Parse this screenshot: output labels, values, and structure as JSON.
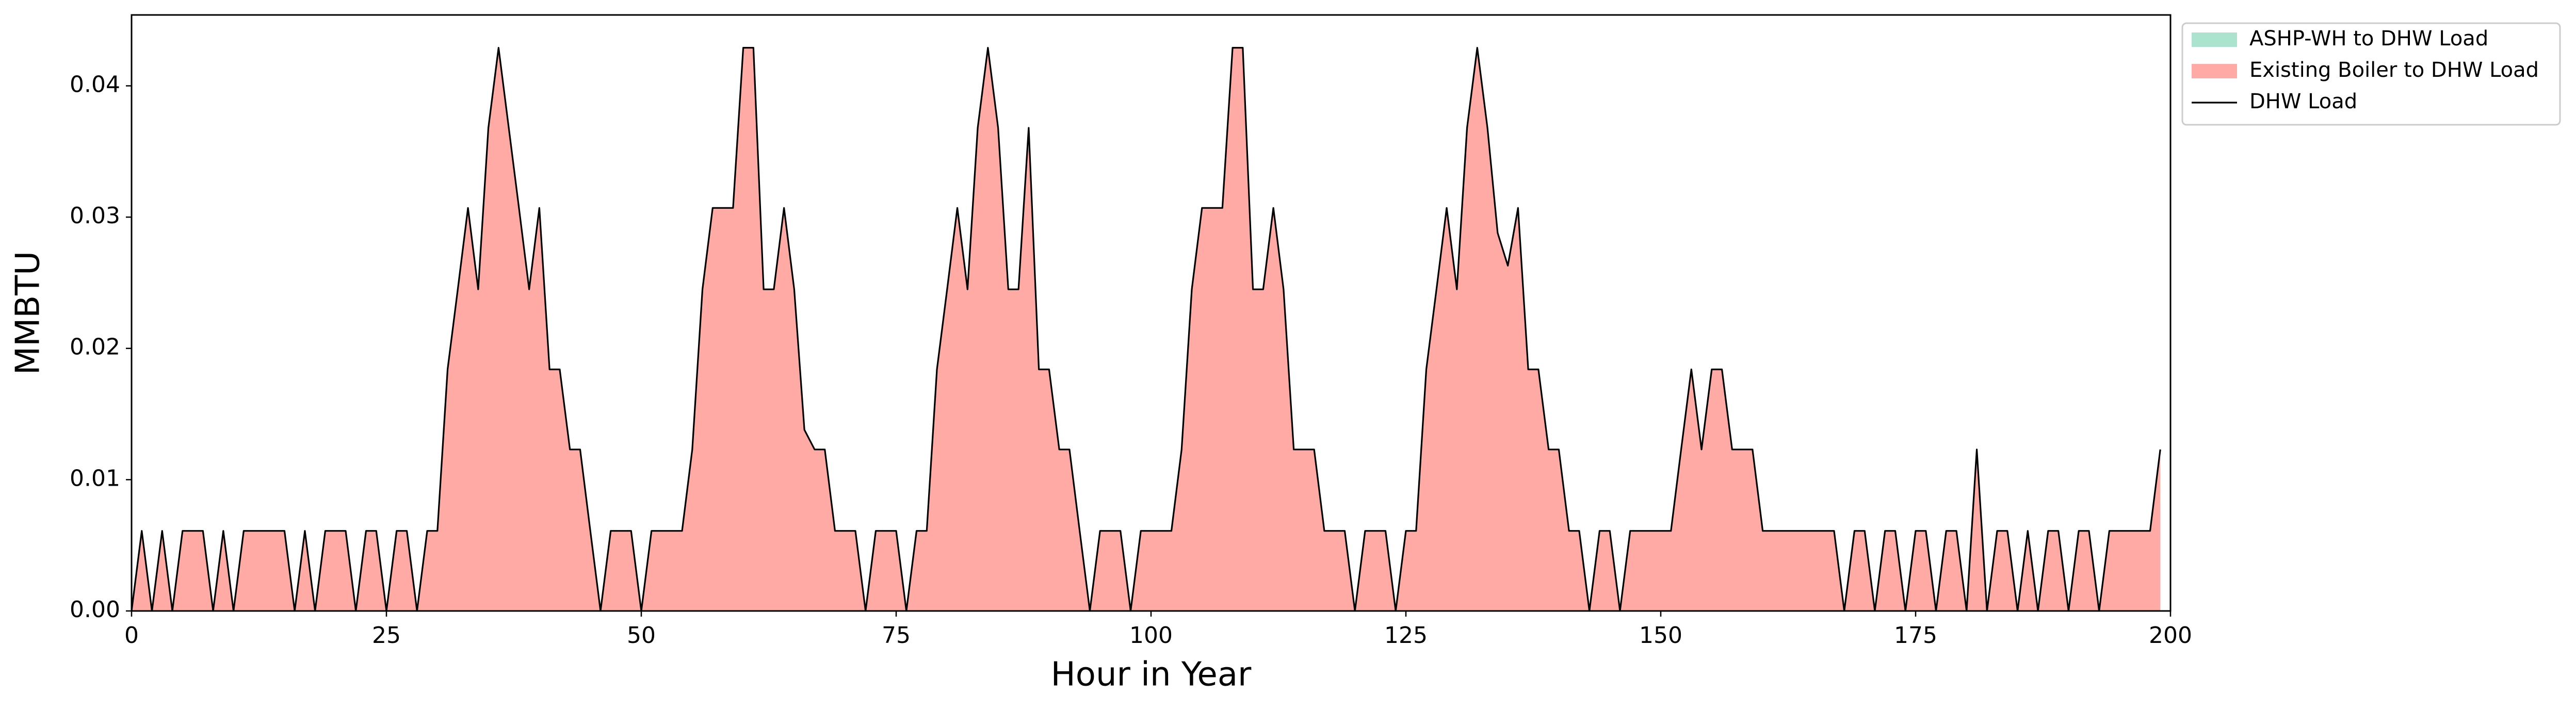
{
  "chart_data": {
    "type": "stacked_area_line",
    "xlabel": "Hour in Year",
    "ylabel": "MMBTU",
    "x": [
      0,
      1,
      2,
      3,
      4,
      5,
      6,
      7,
      8,
      9,
      10,
      11,
      12,
      13,
      14,
      15,
      16,
      17,
      18,
      19,
      20,
      21,
      22,
      23,
      24,
      25,
      26,
      27,
      28,
      29,
      30,
      31,
      32,
      33,
      34,
      35,
      36,
      37,
      38,
      39,
      40,
      41,
      42,
      43,
      44,
      45,
      46,
      47,
      48,
      49,
      50,
      51,
      52,
      53,
      54,
      55,
      56,
      57,
      58,
      59,
      60,
      61,
      62,
      63,
      64,
      65,
      66,
      67,
      68,
      69,
      70,
      71,
      72,
      73,
      74,
      75,
      76,
      77,
      78,
      79,
      80,
      81,
      82,
      83,
      84,
      85,
      86,
      87,
      88,
      89,
      90,
      91,
      92,
      93,
      94,
      95,
      96,
      97,
      98,
      99,
      100,
      101,
      102,
      103,
      104,
      105,
      106,
      107,
      108,
      109,
      110,
      111,
      112,
      113,
      114,
      115,
      116,
      117,
      118,
      119,
      120,
      121,
      122,
      123,
      124,
      125,
      126,
      127,
      128,
      129,
      130,
      131,
      132,
      133,
      134,
      135,
      136,
      137,
      138,
      139,
      140,
      141,
      142,
      143,
      144,
      145,
      146,
      147,
      148,
      149,
      150,
      151,
      152,
      153,
      154,
      155,
      156,
      157,
      158,
      159,
      160,
      161,
      162,
      163,
      164,
      165,
      166,
      167,
      168,
      169,
      170,
      171,
      172,
      173,
      174,
      175,
      176,
      177,
      178,
      179,
      180,
      181,
      182,
      183,
      184,
      185,
      186,
      187,
      188,
      189,
      190,
      191,
      192,
      193,
      194,
      195,
      196,
      197,
      198,
      199
    ],
    "series": [
      {
        "name": "ASHP-WH to DHW Load",
        "color": "#abe3cf",
        "kind": "area",
        "values": [
          0,
          0,
          0,
          0,
          0,
          0,
          0,
          0,
          0,
          0,
          0,
          0,
          0,
          0,
          0,
          0,
          0,
          0,
          0,
          0,
          0,
          0,
          0,
          0,
          0,
          0,
          0,
          0,
          0,
          0,
          0,
          0,
          0,
          0,
          0,
          0,
          0,
          0,
          0,
          0,
          0,
          0,
          0,
          0,
          0,
          0,
          0,
          0,
          0,
          0,
          0,
          0,
          0,
          0,
          0,
          0,
          0,
          0,
          0,
          0,
          0,
          0,
          0,
          0,
          0,
          0,
          0,
          0,
          0,
          0,
          0,
          0,
          0,
          0,
          0,
          0,
          0,
          0,
          0,
          0,
          0,
          0,
          0,
          0,
          0,
          0,
          0,
          0,
          0,
          0,
          0,
          0,
          0,
          0,
          0,
          0,
          0,
          0,
          0,
          0,
          0,
          0,
          0,
          0,
          0,
          0,
          0,
          0,
          0,
          0,
          0,
          0,
          0,
          0,
          0,
          0,
          0,
          0,
          0,
          0,
          0,
          0,
          0,
          0,
          0,
          0,
          0,
          0,
          0,
          0,
          0,
          0,
          0,
          0,
          0,
          0,
          0,
          0,
          0,
          0,
          0,
          0,
          0,
          0,
          0,
          0,
          0,
          0,
          0,
          0,
          0,
          0,
          0,
          0,
          0,
          0,
          0,
          0,
          0,
          0,
          0,
          0,
          0,
          0,
          0,
          0,
          0,
          0,
          0,
          0,
          0,
          0,
          0,
          0,
          0,
          0,
          0,
          0,
          0,
          0,
          0,
          0,
          0,
          0,
          0,
          0,
          0,
          0,
          0,
          0,
          0,
          0,
          0,
          0,
          0,
          0,
          0,
          0,
          0,
          0
        ]
      },
      {
        "name": "Existing Boiler to DHW Load",
        "color": "#ffaaa5",
        "kind": "area",
        "values": [
          0,
          0.0061,
          0,
          0.0061,
          0,
          0.0061,
          0.0061,
          0.0061,
          0,
          0.0061,
          0,
          0.0061,
          0.0061,
          0.0061,
          0.0061,
          0.0061,
          0,
          0.0061,
          0,
          0.0061,
          0.0061,
          0.0061,
          0,
          0.0061,
          0.0061,
          0,
          0.0061,
          0.0061,
          0,
          0.0061,
          0.0061,
          0.0184,
          0.0245,
          0.0307,
          0.0245,
          0.0368,
          0.0429,
          0.0368,
          0.0307,
          0.0245,
          0.0307,
          0.0184,
          0.0184,
          0.0123,
          0.0123,
          0.0061,
          0,
          0.0061,
          0.0061,
          0.0061,
          0,
          0.0061,
          0.0061,
          0.0061,
          0.0061,
          0.0123,
          0.0245,
          0.0307,
          0.0307,
          0.0307,
          0.0429,
          0.0429,
          0.0245,
          0.0245,
          0.0307,
          0.0245,
          0.0138,
          0.0123,
          0.0123,
          0.0061,
          0.0061,
          0.0061,
          0,
          0.0061,
          0.0061,
          0.0061,
          0,
          0.0061,
          0.0061,
          0.0184,
          0.0245,
          0.0307,
          0.0245,
          0.0368,
          0.0429,
          0.0368,
          0.0245,
          0.0245,
          0.0368,
          0.0184,
          0.0184,
          0.0123,
          0.0123,
          0.0061,
          0,
          0.0061,
          0.0061,
          0.0061,
          0,
          0.0061,
          0.0061,
          0.0061,
          0.0061,
          0.0123,
          0.0245,
          0.0307,
          0.0307,
          0.0307,
          0.0429,
          0.0429,
          0.0245,
          0.0245,
          0.0307,
          0.0245,
          0.0123,
          0.0123,
          0.0123,
          0.0061,
          0.0061,
          0.0061,
          0,
          0.0061,
          0.0061,
          0.0061,
          0,
          0.0061,
          0.0061,
          0.0184,
          0.0245,
          0.0307,
          0.0245,
          0.0368,
          0.0429,
          0.0368,
          0.0288,
          0.0263,
          0.0307,
          0.0184,
          0.0184,
          0.0123,
          0.0123,
          0.0061,
          0.0061,
          0,
          0.0061,
          0.0061,
          0,
          0.0061,
          0.0061,
          0.0061,
          0.0061,
          0.0061,
          0.0123,
          0.0184,
          0.0123,
          0.0184,
          0.0184,
          0.0123,
          0.0123,
          0.0123,
          0.0061,
          0.0061,
          0.0061,
          0.0061,
          0.0061,
          0.0061,
          0.0061,
          0.0061,
          0,
          0.0061,
          0.0061,
          0,
          0.0061,
          0.0061,
          0,
          0.0061,
          0.0061,
          0,
          0.0061,
          0.0061,
          0,
          0.0123,
          0,
          0.0061,
          0.0061,
          0,
          0.0061,
          0,
          0.0061,
          0.0061,
          0,
          0.0061,
          0.0061,
          0,
          0.0061,
          0.0061,
          0.0061,
          0.0061,
          0.0061,
          0.0123
        ]
      },
      {
        "name": "DHW Load",
        "color": "#000000",
        "kind": "line",
        "values": [
          0,
          0.0061,
          0,
          0.0061,
          0,
          0.0061,
          0.0061,
          0.0061,
          0,
          0.0061,
          0,
          0.0061,
          0.0061,
          0.0061,
          0.0061,
          0.0061,
          0,
          0.0061,
          0,
          0.0061,
          0.0061,
          0.0061,
          0,
          0.0061,
          0.0061,
          0,
          0.0061,
          0.0061,
          0,
          0.0061,
          0.0061,
          0.0184,
          0.0245,
          0.0307,
          0.0245,
          0.0368,
          0.0429,
          0.0368,
          0.0307,
          0.0245,
          0.0307,
          0.0184,
          0.0184,
          0.0123,
          0.0123,
          0.0061,
          0,
          0.0061,
          0.0061,
          0.0061,
          0,
          0.0061,
          0.0061,
          0.0061,
          0.0061,
          0.0123,
          0.0245,
          0.0307,
          0.0307,
          0.0307,
          0.0429,
          0.0429,
          0.0245,
          0.0245,
          0.0307,
          0.0245,
          0.0138,
          0.0123,
          0.0123,
          0.0061,
          0.0061,
          0.0061,
          0,
          0.0061,
          0.0061,
          0.0061,
          0,
          0.0061,
          0.0061,
          0.0184,
          0.0245,
          0.0307,
          0.0245,
          0.0368,
          0.0429,
          0.0368,
          0.0245,
          0.0245,
          0.0368,
          0.0184,
          0.0184,
          0.0123,
          0.0123,
          0.0061,
          0,
          0.0061,
          0.0061,
          0.0061,
          0,
          0.0061,
          0.0061,
          0.0061,
          0.0061,
          0.0123,
          0.0245,
          0.0307,
          0.0307,
          0.0307,
          0.0429,
          0.0429,
          0.0245,
          0.0245,
          0.0307,
          0.0245,
          0.0123,
          0.0123,
          0.0123,
          0.0061,
          0.0061,
          0.0061,
          0,
          0.0061,
          0.0061,
          0.0061,
          0,
          0.0061,
          0.0061,
          0.0184,
          0.0245,
          0.0307,
          0.0245,
          0.0368,
          0.0429,
          0.0368,
          0.0288,
          0.0263,
          0.0307,
          0.0184,
          0.0184,
          0.0123,
          0.0123,
          0.0061,
          0.0061,
          0,
          0.0061,
          0.0061,
          0,
          0.0061,
          0.0061,
          0.0061,
          0.0061,
          0.0061,
          0.0123,
          0.0184,
          0.0123,
          0.0184,
          0.0184,
          0.0123,
          0.0123,
          0.0123,
          0.0061,
          0.0061,
          0.0061,
          0.0061,
          0.0061,
          0.0061,
          0.0061,
          0.0061,
          0,
          0.0061,
          0.0061,
          0,
          0.0061,
          0.0061,
          0,
          0.0061,
          0.0061,
          0,
          0.0061,
          0.0061,
          0,
          0.0123,
          0,
          0.0061,
          0.0061,
          0,
          0.0061,
          0,
          0.0061,
          0.0061,
          0,
          0.0061,
          0.0061,
          0,
          0.0061,
          0.0061,
          0.0061,
          0.0061,
          0.0061,
          0.0123
        ]
      }
    ],
    "xlim": [
      0,
      200
    ],
    "xticks": [
      0,
      25,
      50,
      75,
      100,
      125,
      150,
      175,
      200
    ],
    "ylim": [
      0,
      0.0454
    ],
    "yticks": [
      {
        "value": 0,
        "label": "0.00"
      },
      {
        "value": 0.01,
        "label": "0.01"
      },
      {
        "value": 0.02,
        "label": "0.02"
      },
      {
        "value": 0.03,
        "label": "0.03"
      },
      {
        "value": 0.04,
        "label": "0.04"
      }
    ],
    "grid": false,
    "legend": "outside upper right"
  }
}
